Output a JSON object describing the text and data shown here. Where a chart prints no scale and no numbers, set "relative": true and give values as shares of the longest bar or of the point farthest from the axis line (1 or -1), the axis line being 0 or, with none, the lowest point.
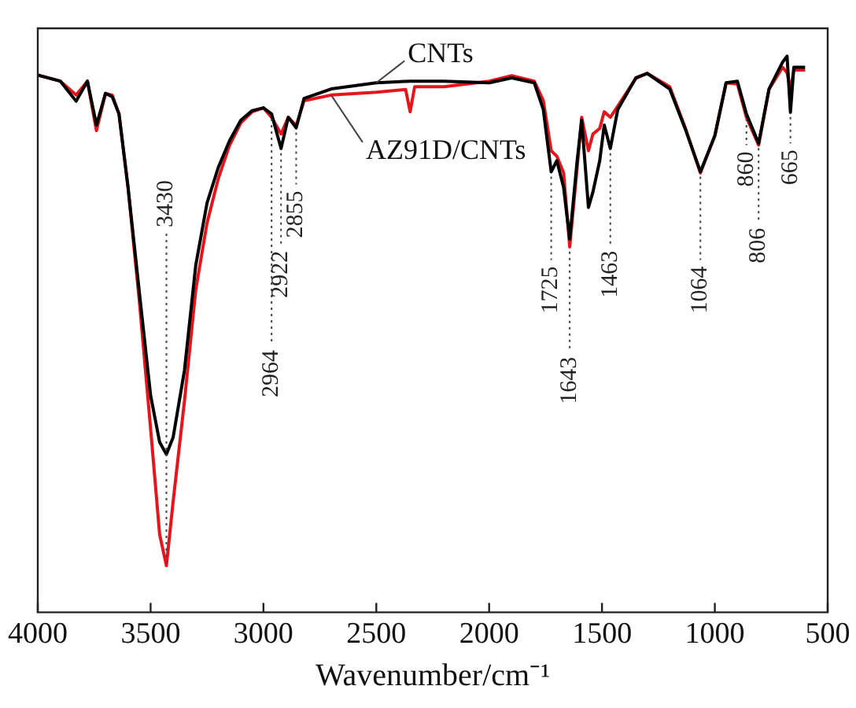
{
  "chart_data": {
    "type": "line",
    "xlabel": "Wavenumber/cm⁻¹",
    "relative": true,
    "legend": false,
    "grid": false,
    "marker": "none",
    "line_style": "solid",
    "xlim": [
      4000,
      500
    ],
    "xticks": [
      4000,
      3500,
      3000,
      2500,
      2000,
      1500,
      1000,
      500
    ],
    "series": [
      {
        "name": "CNTs",
        "color": "#000000",
        "x": [
          4000,
          3900,
          3830,
          3780,
          3740,
          3700,
          3670,
          3640,
          3600,
          3550,
          3500,
          3460,
          3430,
          3400,
          3350,
          3300,
          3250,
          3200,
          3150,
          3100,
          3050,
          3000,
          2964,
          2922,
          2890,
          2855,
          2820,
          2700,
          2500,
          2350,
          2200,
          2000,
          1900,
          1800,
          1760,
          1725,
          1700,
          1670,
          1643,
          1610,
          1590,
          1560,
          1540,
          1510,
          1490,
          1463,
          1430,
          1350,
          1300,
          1200,
          1130,
          1064,
          1000,
          950,
          900,
          860,
          806,
          760,
          700,
          680,
          665,
          650,
          600
        ],
        "values": [
          0.966,
          0.955,
          0.919,
          0.955,
          0.876,
          0.933,
          0.927,
          0.896,
          0.764,
          0.576,
          0.39,
          0.306,
          0.284,
          0.315,
          0.435,
          0.624,
          0.736,
          0.8,
          0.848,
          0.885,
          0.902,
          0.907,
          0.896,
          0.834,
          0.89,
          0.871,
          0.924,
          0.941,
          0.952,
          0.955,
          0.955,
          0.952,
          0.961,
          0.952,
          0.904,
          0.792,
          0.812,
          0.764,
          0.671,
          0.812,
          0.885,
          0.728,
          0.756,
          0.812,
          0.876,
          0.834,
          0.904,
          0.961,
          0.969,
          0.941,
          0.868,
          0.792,
          0.857,
          0.952,
          0.955,
          0.896,
          0.843,
          0.941,
          0.989,
          1,
          0.899,
          0.98,
          0.98
        ]
      },
      {
        "name": "AZ91D/CNTs",
        "color": "#e8141c",
        "x": [
          4000,
          3900,
          3830,
          3780,
          3740,
          3700,
          3670,
          3640,
          3600,
          3550,
          3500,
          3460,
          3430,
          3400,
          3350,
          3300,
          3250,
          3200,
          3150,
          3100,
          3050,
          3000,
          2964,
          2922,
          2890,
          2855,
          2820,
          2700,
          2500,
          2370,
          2350,
          2330,
          2200,
          2000,
          1900,
          1800,
          1760,
          1725,
          1700,
          1670,
          1643,
          1610,
          1590,
          1560,
          1540,
          1510,
          1490,
          1463,
          1430,
          1350,
          1300,
          1200,
          1130,
          1064,
          1000,
          950,
          900,
          860,
          806,
          760,
          700,
          680,
          665,
          650,
          600
        ],
        "values": [
          0.966,
          0.955,
          0.93,
          0.955,
          0.866,
          0.933,
          0.93,
          0.896,
          0.764,
          0.56,
          0.33,
          0.14,
          0.084,
          0.2,
          0.38,
          0.58,
          0.7,
          0.78,
          0.84,
          0.88,
          0.9,
          0.907,
          0.89,
          0.86,
          0.89,
          0.875,
          0.92,
          0.93,
          0.935,
          0.94,
          0.9,
          0.945,
          0.945,
          0.955,
          0.965,
          0.955,
          0.92,
          0.83,
          0.82,
          0.79,
          0.657,
          0.8,
          0.89,
          0.83,
          0.86,
          0.87,
          0.9,
          0.89,
          0.91,
          0.96,
          0.969,
          0.945,
          0.87,
          0.79,
          0.857,
          0.952,
          0.95,
          0.89,
          0.84,
          0.94,
          0.98,
          0.97,
          0.94,
          0.975,
          0.975
        ]
      }
    ],
    "annotations": [
      {
        "text": "3430",
        "x": 3430,
        "y": 0.084
      },
      {
        "text": "2964",
        "x": 2964,
        "y": 0.896
      },
      {
        "text": "2922",
        "x": 2922,
        "y": 0.834
      },
      {
        "text": "2855",
        "x": 2855,
        "y": 0.871
      },
      {
        "text": "1725",
        "x": 1725,
        "y": 0.792
      },
      {
        "text": "1643",
        "x": 1643,
        "y": 0.657
      },
      {
        "text": "1463",
        "x": 1463,
        "y": 0.834
      },
      {
        "text": "1064",
        "x": 1064,
        "y": 0.792
      },
      {
        "text": "860",
        "x": 860,
        "y": 0.896
      },
      {
        "text": "806",
        "x": 806,
        "y": 0.843
      },
      {
        "text": "665",
        "x": 665,
        "y": 0.899
      }
    ]
  }
}
